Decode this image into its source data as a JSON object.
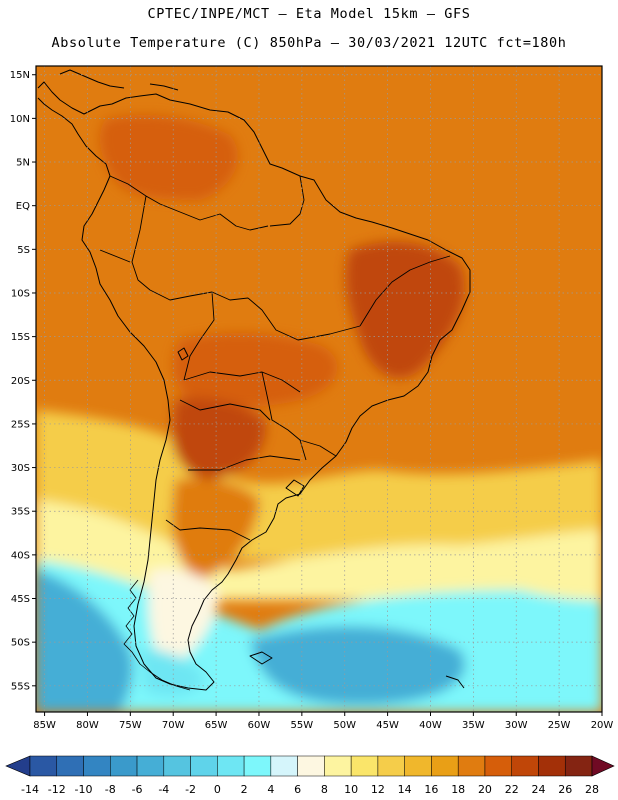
{
  "header": {
    "line1": "CPTEC/INPE/MCT – Eta Model 15km – GFS",
    "line2": "Absolute Temperature (C) 850hPa – 30/03/2021 12UTC fct=180h"
  },
  "axes": {
    "lat_labels": [
      "15N",
      "10N",
      "5N",
      "EQ",
      "5S",
      "10S",
      "15S",
      "20S",
      "25S",
      "30S",
      "35S",
      "40S",
      "45S",
      "50S",
      "55S"
    ],
    "lon_labels": [
      "85W",
      "80W",
      "75W",
      "70W",
      "65W",
      "60W",
      "55W",
      "50W",
      "45W",
      "40W",
      "35W",
      "30W",
      "25W",
      "20W"
    ]
  },
  "colorbar": {
    "labels": [
      "-14",
      "-12",
      "-10",
      "-8",
      "-6",
      "-4",
      "-2",
      "0",
      "2",
      "4",
      "6",
      "8",
      "10",
      "12",
      "14",
      "16",
      "18",
      "20",
      "22",
      "24",
      "26",
      "28"
    ],
    "colors": [
      "#233e8c",
      "#2a58a4",
      "#2f6fb5",
      "#3385c2",
      "#3a9acb",
      "#45aed6",
      "#55c4e0",
      "#5fd3ea",
      "#6ee6f3",
      "#7df7fb",
      "#d5f5fb",
      "#fdf7e1",
      "#fdf4a0",
      "#fae56a",
      "#f5cd4a",
      "#f0b72c",
      "#e99f16",
      "#e07c10",
      "#d65e0a",
      "#c04608",
      "#a33008",
      "#842412",
      "#700a24"
    ]
  },
  "chart_data": {
    "type": "heatmap",
    "title": "Absolute Temperature (C) 850hPa",
    "units": "C",
    "lon_range": [
      -86,
      -20
    ],
    "lat_range": [
      16,
      -58
    ],
    "scale_min": -14,
    "scale_max": 28,
    "regions": [
      {
        "name": "background-ocean-tropics",
        "value": 18
      },
      {
        "name": "south-atlantic-mid",
        "value": 13
      },
      {
        "name": "south-atlantic-cool",
        "value": 8
      },
      {
        "name": "southern-ocean",
        "value": 2
      },
      {
        "name": "pacific-south-cold",
        "value": -6
      },
      {
        "name": "northeast-brazil-warm",
        "value": 22
      },
      {
        "name": "central-brazil-warm",
        "value": 21
      },
      {
        "name": "northern-colombia-venezuela",
        "value": 21
      },
      {
        "name": "chaco-warm",
        "value": 22
      },
      {
        "name": "argentina-warm-tongue",
        "value": 19
      },
      {
        "name": "patagonia-cool",
        "value": 6
      },
      {
        "name": "tierra-del-fuego",
        "value": 1
      }
    ]
  }
}
